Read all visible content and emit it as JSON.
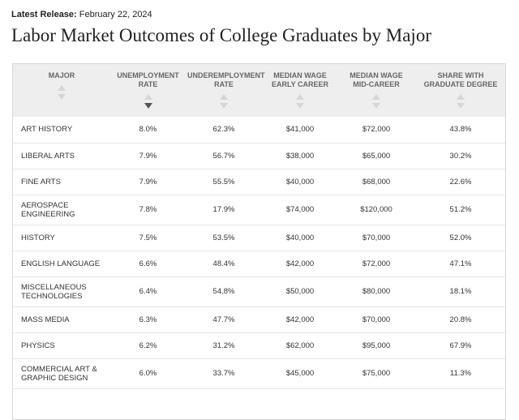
{
  "release": {
    "label": "Latest Release:",
    "date": "February 22, 2024"
  },
  "title": "Labor Market Outcomes of College Graduates by Major",
  "table": {
    "headers": [
      {
        "line1": "MAJOR",
        "line2": ""
      },
      {
        "line1": "UNEMPLOYMENT",
        "line2": "RATE"
      },
      {
        "line1": "UNDEREMPLOYMENT",
        "line2": "RATE"
      },
      {
        "line1": "MEDIAN WAGE",
        "line2": "EARLY CAREER"
      },
      {
        "line1": "MEDIAN WAGE",
        "line2": "MID-CAREER"
      },
      {
        "line1": "SHARE WITH",
        "line2": "GRADUATE DEGREE"
      }
    ],
    "sorted_column": "UNEMPLOYMENT RATE",
    "sort_direction": "descending",
    "rows": [
      {
        "major": "Art History",
        "unemployment": "8.0%",
        "underemployment": "62.3%",
        "early": "$41,000",
        "mid": "$72,000",
        "grad": "43.8%"
      },
      {
        "major": "Liberal Arts",
        "unemployment": "7.9%",
        "underemployment": "56.7%",
        "early": "$38,000",
        "mid": "$65,000",
        "grad": "30.2%"
      },
      {
        "major": "Fine Arts",
        "unemployment": "7.9%",
        "underemployment": "55.5%",
        "early": "$40,000",
        "mid": "$68,000",
        "grad": "22.6%"
      },
      {
        "major": "Aerospace Engineering",
        "unemployment": "7.8%",
        "underemployment": "17.9%",
        "early": "$74,000",
        "mid": "$120,000",
        "grad": "51.2%"
      },
      {
        "major": "History",
        "unemployment": "7.5%",
        "underemployment": "53.5%",
        "early": "$40,000",
        "mid": "$70,000",
        "grad": "52.0%"
      },
      {
        "major": "English Language",
        "unemployment": "6.6%",
        "underemployment": "48.4%",
        "early": "$42,000",
        "mid": "$72,000",
        "grad": "47.1%"
      },
      {
        "major": "Miscellaneous Technologies",
        "unemployment": "6.4%",
        "underemployment": "54.8%",
        "early": "$50,000",
        "mid": "$80,000",
        "grad": "18.1%"
      },
      {
        "major": "Mass Media",
        "unemployment": "6.3%",
        "underemployment": "47.7%",
        "early": "$42,000",
        "mid": "$70,000",
        "grad": "20.8%"
      },
      {
        "major": "Physics",
        "unemployment": "6.2%",
        "underemployment": "31.2%",
        "early": "$62,000",
        "mid": "$95,000",
        "grad": "67.9%"
      },
      {
        "major": "Commercial Art & Graphic Design",
        "unemployment": "6.0%",
        "underemployment": "33.7%",
        "early": "$45,000",
        "mid": "$75,000",
        "grad": "11.3%"
      }
    ]
  }
}
